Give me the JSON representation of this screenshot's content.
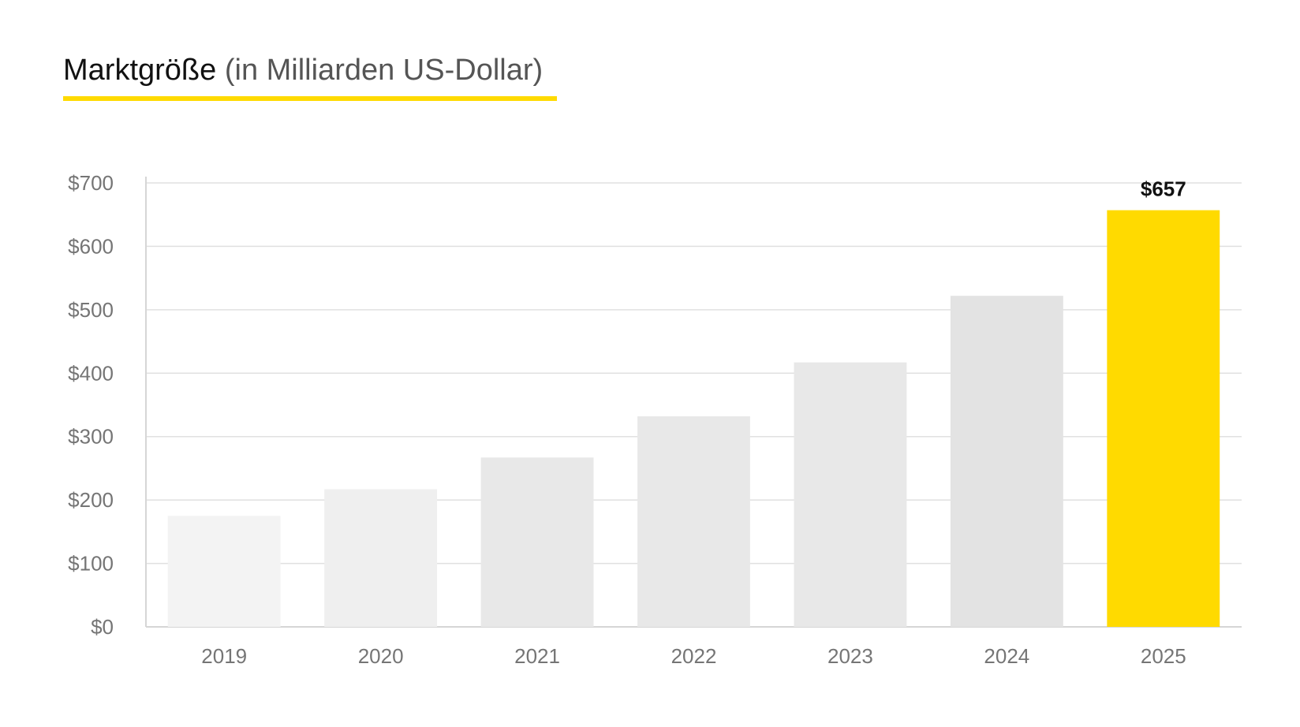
{
  "chart_data": {
    "type": "bar",
    "title": "Marktgröße",
    "subtitle": "(in Milliarden US-Dollar)",
    "categories": [
      "2019",
      "2020",
      "2021",
      "2022",
      "2023",
      "2024",
      "2025"
    ],
    "values": [
      175,
      217,
      267,
      332,
      417,
      522,
      657
    ],
    "ylim": [
      0,
      700
    ],
    "yticks": [
      0,
      100,
      200,
      300,
      400,
      500,
      600,
      700
    ],
    "ytick_labels": [
      "$0",
      "$100",
      "$200",
      "$300",
      "$400",
      "$500",
      "$600",
      "$700"
    ],
    "xlabel": "",
    "ylabel": "",
    "grid": true,
    "bar_colors": [
      "#F3F3F3",
      "#EFEFEF",
      "#E8E8E8",
      "#E8E8E8",
      "#E8E8E8",
      "#E3E3E3",
      "#FFDA00"
    ],
    "data_labels": [
      {
        "category": "2025",
        "text": "$657"
      }
    ]
  },
  "colors": {
    "accent": "#FFDA00",
    "grid": "#E0E0E0",
    "axis_text": "#757575",
    "title_text": "#111111"
  }
}
